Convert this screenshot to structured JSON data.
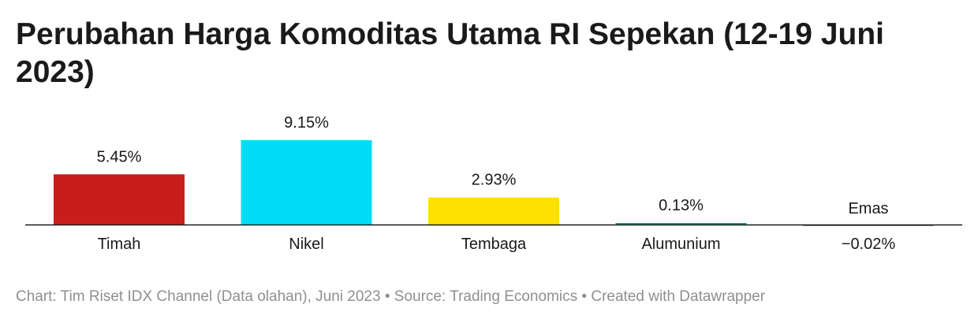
{
  "title": "Perubahan Harga Komoditas Utama RI Sepekan (12-19 Juni 2023)",
  "footer": {
    "credit": "Chart: Tim Riset IDX Channel (Data olahan), Juni 2023",
    "source": "Source: Trading Economics",
    "created": "Created with Datawrapper",
    "separator": " • "
  },
  "chart_data": {
    "type": "bar",
    "title": "Perubahan Harga Komoditas Utama RI Sepekan (12-19 Juni 2023)",
    "categories": [
      "Timah",
      "Nikel",
      "Tembaga",
      "Alumunium",
      "Emas"
    ],
    "values": [
      5.45,
      9.15,
      2.93,
      0.13,
      -0.02
    ],
    "value_labels": [
      "5.45%",
      "9.15%",
      "2.93%",
      "0.13%",
      "−0.02%"
    ],
    "colors": [
      "#c71e1d",
      "#00dcf5",
      "#ffe100",
      "#18a878",
      "#8a8a8a"
    ],
    "unit": "%",
    "grid": false,
    "legend": "none"
  }
}
